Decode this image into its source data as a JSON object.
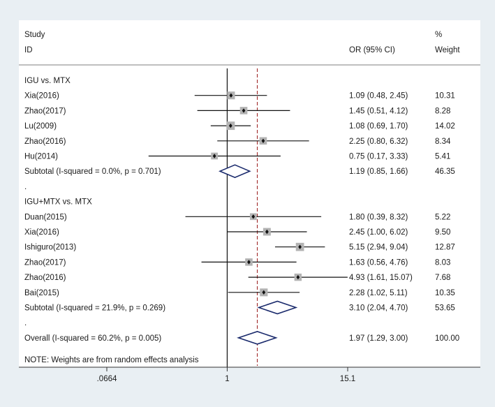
{
  "chart_data": {
    "type": "forest",
    "scale": "log",
    "header": {
      "study_line1": "Study",
      "study_line2": "ID",
      "effect": "OR (95% CI)",
      "weight_line1": "%",
      "weight_line2": "Weight"
    },
    "null_value": 1,
    "overall_estimate": 1.97,
    "ticks": [
      {
        "value": 0.0664,
        "label": ".0664"
      },
      {
        "value": 1,
        "label": "1"
      },
      {
        "value": 15.1,
        "label": "15.1"
      }
    ],
    "rows": [
      {
        "kind": "group",
        "label": "IGU vs. MTX"
      },
      {
        "kind": "study",
        "label": "Xia(2016)",
        "or": 1.09,
        "lo": 0.48,
        "hi": 2.45,
        "ci_text": "1.09 (0.48, 2.45)",
        "weight": 10.31,
        "weight_text": "10.31"
      },
      {
        "kind": "study",
        "label": "Zhao(2017)",
        "or": 1.45,
        "lo": 0.51,
        "hi": 4.12,
        "ci_text": "1.45 (0.51, 4.12)",
        "weight": 8.28,
        "weight_text": "8.28"
      },
      {
        "kind": "study",
        "label": "Lu(2009)",
        "or": 1.08,
        "lo": 0.69,
        "hi": 1.7,
        "ci_text": "1.08 (0.69, 1.70)",
        "weight": 14.02,
        "weight_text": "14.02"
      },
      {
        "kind": "study",
        "label": "Zhao(2016)",
        "or": 2.25,
        "lo": 0.8,
        "hi": 6.32,
        "ci_text": "2.25 (0.80, 6.32)",
        "weight": 8.34,
        "weight_text": "8.34"
      },
      {
        "kind": "study",
        "label": "Hu(2014)",
        "or": 0.75,
        "lo": 0.17,
        "hi": 3.33,
        "ci_text": "0.75 (0.17, 3.33)",
        "weight": 5.41,
        "weight_text": "5.41"
      },
      {
        "kind": "subtotal",
        "label": "Subtotal  (I-squared = 0.0%, p = 0.701)",
        "or": 1.19,
        "lo": 0.85,
        "hi": 1.66,
        "ci_text": "1.19 (0.85, 1.66)",
        "weight_text": "46.35"
      },
      {
        "kind": "dot",
        "label": "."
      },
      {
        "kind": "group",
        "label": "IGU+MTX vs. MTX"
      },
      {
        "kind": "study",
        "label": "Duan(2015)",
        "or": 1.8,
        "lo": 0.39,
        "hi": 8.32,
        "ci_text": "1.80 (0.39, 8.32)",
        "weight": 5.22,
        "weight_text": "5.22"
      },
      {
        "kind": "study",
        "label": "Xia(2016)",
        "or": 2.45,
        "lo": 1.0,
        "hi": 6.02,
        "ci_text": "2.45 (1.00, 6.02)",
        "weight": 9.5,
        "weight_text": "9.50"
      },
      {
        "kind": "study",
        "label": "Ishiguro(2013)",
        "or": 5.15,
        "lo": 2.94,
        "hi": 9.04,
        "ci_text": "5.15 (2.94, 9.04)",
        "weight": 12.87,
        "weight_text": "12.87"
      },
      {
        "kind": "study",
        "label": "Zhao(2017)",
        "or": 1.63,
        "lo": 0.56,
        "hi": 4.76,
        "ci_text": "1.63 (0.56, 4.76)",
        "weight": 8.03,
        "weight_text": "8.03"
      },
      {
        "kind": "study",
        "label": "Zhao(2016)",
        "or": 4.93,
        "lo": 1.61,
        "hi": 15.07,
        "ci_text": "4.93 (1.61, 15.07)",
        "weight": 7.68,
        "weight_text": "7.68"
      },
      {
        "kind": "study",
        "label": "Bai(2015)",
        "or": 2.28,
        "lo": 1.02,
        "hi": 5.11,
        "ci_text": "2.28 (1.02, 5.11)",
        "weight": 10.35,
        "weight_text": "10.35"
      },
      {
        "kind": "subtotal",
        "label": "Subtotal  (I-squared = 21.9%, p = 0.269)",
        "or": 3.1,
        "lo": 2.04,
        "hi": 4.7,
        "ci_text": "3.10 (2.04, 4.70)",
        "weight_text": "53.65"
      },
      {
        "kind": "dot",
        "label": "."
      },
      {
        "kind": "overall",
        "label": "Overall  (I-squared = 60.2%, p = 0.005)",
        "or": 1.97,
        "lo": 1.29,
        "hi": 3.0,
        "ci_text": "1.97 (1.29, 3.00)",
        "weight_text": "100.00"
      }
    ],
    "note": "NOTE: Weights are from random effects analysis",
    "colors": {
      "square": "#b3b3b3",
      "diamond": "#1a2a6c",
      "overall_line": "#a02828",
      "line": "#111111",
      "axis": "#333333"
    }
  }
}
